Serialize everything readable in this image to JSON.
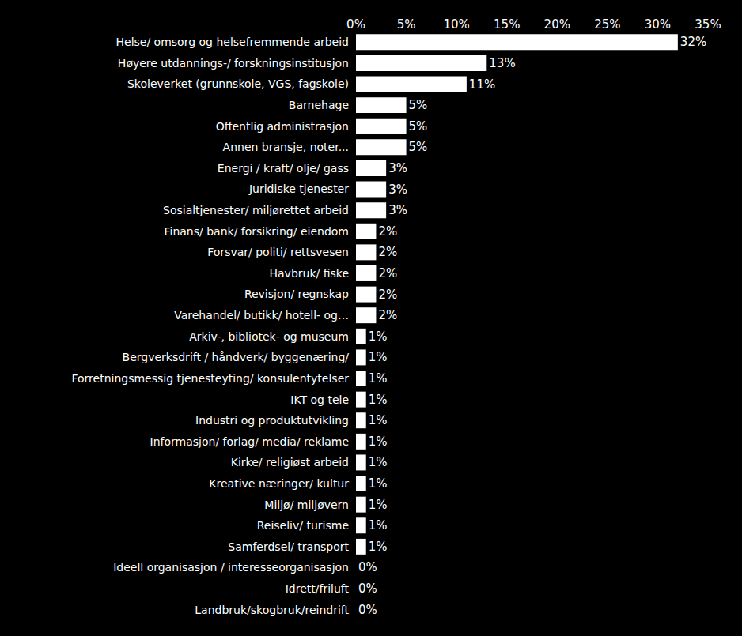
{
  "chart_data": {
    "type": "bar",
    "orientation": "horizontal",
    "categories": [
      "Helse/ omsorg og helsefremmende arbeid",
      "Høyere utdannings-/ forskningsinstitusjon",
      "Skoleverket (grunnskole, VGS, fagskole)",
      "Barnehage",
      "Offentlig administrasjon",
      "Annen bransje, noter...",
      "Energi / kraft/ olje/ gass",
      "Juridiske tjenester",
      "Sosialtjenester/ miljørettet arbeid",
      "Finans/ bank/ forsikring/ eiendom",
      "Forsvar/ politi/ rettsvesen",
      "Havbruk/ fiske",
      "Revisjon/ regnskap",
      "Varehandel/ butikk/ hotell- og…",
      "Arkiv-, bibliotek- og museum",
      "Bergverksdrift / håndverk/ byggenæring/",
      "Forretningsmessig tjenesteyting/ konsulentytelser",
      "IKT og tele",
      "Industri og produktutvikling",
      "Informasjon/ forlag/ media/ reklame",
      "Kirke/ religiøst arbeid",
      "Kreative næringer/ kultur",
      "Miljø/ miljøvern",
      "Reiseliv/ turisme",
      "Samferdsel/ transport",
      "Ideell organisasjon / interesseorganisasjon",
      "Idrett/friluft",
      "Landbruk/skogbruk/reindrift"
    ],
    "values": [
      32,
      13,
      11,
      5,
      5,
      5,
      3,
      3,
      3,
      2,
      2,
      2,
      2,
      2,
      1,
      1,
      1,
      1,
      1,
      1,
      1,
      1,
      1,
      1,
      1,
      0,
      0,
      0
    ],
    "value_labels": [
      "32%",
      "13%",
      "11%",
      "5%",
      "5%",
      "5%",
      "3%",
      "3%",
      "3%",
      "2%",
      "2%",
      "2%",
      "2%",
      "2%",
      "1%",
      "1%",
      "1%",
      "1%",
      "1%",
      "1%",
      "1%",
      "1%",
      "1%",
      "1%",
      "1%",
      "0%",
      "0%",
      "0%"
    ],
    "data_labels": true,
    "color": "#ffffff",
    "xlim": [
      0,
      35
    ],
    "xticks": [
      {
        "value": 0,
        "label": "0%"
      },
      {
        "value": 5,
        "label": "5%"
      },
      {
        "value": 10,
        "label": "10%"
      },
      {
        "value": 15,
        "label": "15%"
      },
      {
        "value": 20,
        "label": "20%"
      },
      {
        "value": 25,
        "label": "25%"
      },
      {
        "value": 30,
        "label": "30%"
      },
      {
        "value": 35,
        "label": "35%"
      }
    ],
    "grid": false
  }
}
